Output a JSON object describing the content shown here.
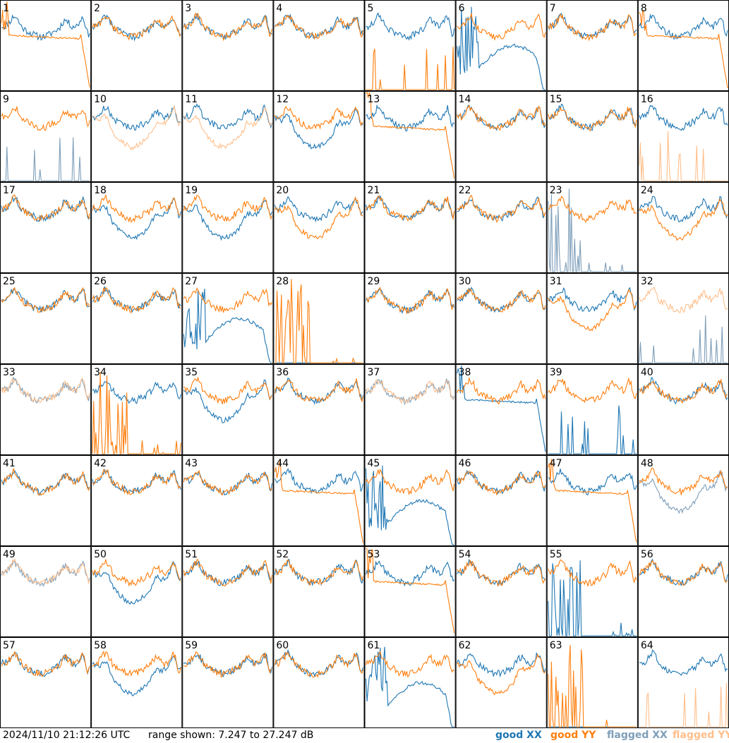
{
  "chart_data": {
    "type": "line",
    "description_units": "dB",
    "rows": 8,
    "cols": 8,
    "range": {
      "min": 7.247,
      "max": 27.247
    },
    "colors": {
      "good_xx": "#1f77b4",
      "good_yy": "#ff7f0e",
      "flagged_xx": "#7f9fba",
      "flagged_yy": "#ffbf8c"
    },
    "panels": [
      {
        "id": "1",
        "xx": "good",
        "yy": "good",
        "style_xx": "normal",
        "style_yy": "rolloff"
      },
      {
        "id": "2",
        "xx": "good",
        "yy": "good",
        "style_xx": "normal",
        "style_yy": "normal"
      },
      {
        "id": "3",
        "xx": "good",
        "yy": "good",
        "style_xx": "normal",
        "style_yy": "normal"
      },
      {
        "id": "4",
        "xx": "good",
        "yy": "good",
        "style_xx": "normal",
        "style_yy": "normal"
      },
      {
        "id": "5",
        "xx": "good",
        "yy": "good",
        "style_xx": "normal",
        "style_yy": "spikes-sparse"
      },
      {
        "id": "6",
        "xx": "good",
        "yy": "good",
        "style_xx": "noisy-dip",
        "style_yy": "normal"
      },
      {
        "id": "7",
        "xx": "good",
        "yy": "good",
        "style_xx": "normal",
        "style_yy": "normal"
      },
      {
        "id": "8",
        "xx": "good",
        "yy": "good",
        "style_xx": "normal",
        "style_yy": "rolloff"
      },
      {
        "id": "9",
        "xx": "flagged",
        "yy": "good",
        "style_xx": "spikes-sparse",
        "style_yy": "normal"
      },
      {
        "id": "10",
        "xx": "good",
        "yy": "flagged",
        "style_xx": "normal",
        "style_yy": "low"
      },
      {
        "id": "11",
        "xx": "good",
        "yy": "flagged",
        "style_xx": "normal",
        "style_yy": "low"
      },
      {
        "id": "12",
        "xx": "good",
        "yy": "good",
        "style_xx": "low",
        "style_yy": "normal"
      },
      {
        "id": "13",
        "xx": "good",
        "yy": "good",
        "style_xx": "normal",
        "style_yy": "rolloff"
      },
      {
        "id": "14",
        "xx": "good",
        "yy": "good",
        "style_xx": "normal",
        "style_yy": "normal"
      },
      {
        "id": "15",
        "xx": "good",
        "yy": "good",
        "style_xx": "normal",
        "style_yy": "normal"
      },
      {
        "id": "16",
        "xx": "good",
        "yy": "flagged",
        "style_xx": "normal",
        "style_yy": "spikes-sparse"
      },
      {
        "id": "17",
        "xx": "good",
        "yy": "good",
        "style_xx": "normal",
        "style_yy": "normal"
      },
      {
        "id": "18",
        "xx": "good",
        "yy": "good",
        "style_xx": "low",
        "style_yy": "normal"
      },
      {
        "id": "19",
        "xx": "good",
        "yy": "good",
        "style_xx": "low",
        "style_yy": "normal"
      },
      {
        "id": "20",
        "xx": "good",
        "yy": "good",
        "style_xx": "normal",
        "style_yy": "low"
      },
      {
        "id": "21",
        "xx": "good",
        "yy": "good",
        "style_xx": "normal",
        "style_yy": "normal"
      },
      {
        "id": "22",
        "xx": "good",
        "yy": "good",
        "style_xx": "normal",
        "style_yy": "normal"
      },
      {
        "id": "23",
        "xx": "flagged",
        "yy": "good",
        "style_xx": "spikes-dense",
        "style_yy": "normal"
      },
      {
        "id": "24",
        "xx": "good",
        "yy": "good",
        "style_xx": "normal",
        "style_yy": "low"
      },
      {
        "id": "25",
        "xx": "good",
        "yy": "good",
        "style_xx": "normal",
        "style_yy": "normal"
      },
      {
        "id": "26",
        "xx": "good",
        "yy": "good",
        "style_xx": "normal",
        "style_yy": "normal"
      },
      {
        "id": "27",
        "xx": "good",
        "yy": "good",
        "style_xx": "noisy-dip",
        "style_yy": "normal"
      },
      {
        "id": "28",
        "xx": "good",
        "yy": "good",
        "style_xx": "none",
        "style_yy": "spikes-dense"
      },
      {
        "id": "29",
        "xx": "good",
        "yy": "good",
        "style_xx": "normal",
        "style_yy": "normal"
      },
      {
        "id": "30",
        "xx": "good",
        "yy": "good",
        "style_xx": "normal",
        "style_yy": "normal"
      },
      {
        "id": "31",
        "xx": "good",
        "yy": "good",
        "style_xx": "normal",
        "style_yy": "low"
      },
      {
        "id": "32",
        "xx": "flagged",
        "yy": "flagged",
        "style_xx": "spikes-sparse",
        "style_yy": "normal"
      },
      {
        "id": "33",
        "xx": "flagged",
        "yy": "flagged",
        "style_xx": "normal",
        "style_yy": "normal"
      },
      {
        "id": "34",
        "xx": "good",
        "yy": "good",
        "style_xx": "normal",
        "style_yy": "spikes-dense"
      },
      {
        "id": "35",
        "xx": "good",
        "yy": "good",
        "style_xx": "low",
        "style_yy": "normal"
      },
      {
        "id": "36",
        "xx": "good",
        "yy": "good",
        "style_xx": "normal",
        "style_yy": "normal"
      },
      {
        "id": "37",
        "xx": "flagged",
        "yy": "flagged",
        "style_xx": "normal",
        "style_yy": "normal"
      },
      {
        "id": "38",
        "xx": "good",
        "yy": "good",
        "style_xx": "rolloff",
        "style_yy": "normal"
      },
      {
        "id": "39",
        "xx": "good",
        "yy": "good",
        "style_xx": "spikes-sparse",
        "style_yy": "normal"
      },
      {
        "id": "40",
        "xx": "good",
        "yy": "good",
        "style_xx": "normal",
        "style_yy": "normal"
      },
      {
        "id": "41",
        "xx": "good",
        "yy": "good",
        "style_xx": "normal",
        "style_yy": "normal"
      },
      {
        "id": "42",
        "xx": "good",
        "yy": "good",
        "style_xx": "normal",
        "style_yy": "normal"
      },
      {
        "id": "43",
        "xx": "good",
        "yy": "good",
        "style_xx": "normal",
        "style_yy": "normal"
      },
      {
        "id": "44",
        "xx": "good",
        "yy": "good",
        "style_xx": "normal",
        "style_yy": "rolloff"
      },
      {
        "id": "45",
        "xx": "good",
        "yy": "good",
        "style_xx": "noisy-dip",
        "style_yy": "normal"
      },
      {
        "id": "46",
        "xx": "good",
        "yy": "good",
        "style_xx": "normal",
        "style_yy": "normal"
      },
      {
        "id": "47",
        "xx": "good",
        "yy": "good",
        "style_xx": "normal",
        "style_yy": "rolloff"
      },
      {
        "id": "48",
        "xx": "flagged",
        "yy": "good",
        "style_xx": "low",
        "style_yy": "normal"
      },
      {
        "id": "49",
        "xx": "flagged",
        "yy": "flagged",
        "style_xx": "normal",
        "style_yy": "normal"
      },
      {
        "id": "50",
        "xx": "good",
        "yy": "good",
        "style_xx": "low",
        "style_yy": "normal"
      },
      {
        "id": "51",
        "xx": "good",
        "yy": "good",
        "style_xx": "normal",
        "style_yy": "normal"
      },
      {
        "id": "52",
        "xx": "good",
        "yy": "good",
        "style_xx": "normal",
        "style_yy": "normal"
      },
      {
        "id": "53",
        "xx": "good",
        "yy": "good",
        "style_xx": "normal",
        "style_yy": "rolloff"
      },
      {
        "id": "54",
        "xx": "good",
        "yy": "good",
        "style_xx": "normal",
        "style_yy": "normal"
      },
      {
        "id": "55",
        "xx": "good",
        "yy": "good",
        "style_xx": "spikes-dense",
        "style_yy": "normal"
      },
      {
        "id": "56",
        "xx": "good",
        "yy": "good",
        "style_xx": "normal",
        "style_yy": "normal"
      },
      {
        "id": "57",
        "xx": "good",
        "yy": "good",
        "style_xx": "normal",
        "style_yy": "normal"
      },
      {
        "id": "58",
        "xx": "good",
        "yy": "good",
        "style_xx": "low",
        "style_yy": "normal"
      },
      {
        "id": "59",
        "xx": "good",
        "yy": "good",
        "style_xx": "normal",
        "style_yy": "normal"
      },
      {
        "id": "60",
        "xx": "good",
        "yy": "good",
        "style_xx": "normal",
        "style_yy": "normal"
      },
      {
        "id": "61",
        "xx": "good",
        "yy": "good",
        "style_xx": "noisy-dip",
        "style_yy": "normal"
      },
      {
        "id": "62",
        "xx": "good",
        "yy": "good",
        "style_xx": "normal",
        "style_yy": "low"
      },
      {
        "id": "63",
        "xx": "good",
        "yy": "good",
        "style_xx": "none",
        "style_yy": "spikes-dense"
      },
      {
        "id": "64",
        "xx": "good",
        "yy": "flagged",
        "style_xx": "normal",
        "style_yy": "spikes-sparse"
      }
    ]
  },
  "footer": {
    "timestamp": "2024/11/10 21:12:26 UTC",
    "range_text": "range shown: 7.247 to 27.247 dB",
    "legend": {
      "good_xx": "good XX",
      "good_yy": "good YY",
      "flagged_xx": "flagged XX",
      "flagged_yy": "flagged YY"
    }
  }
}
